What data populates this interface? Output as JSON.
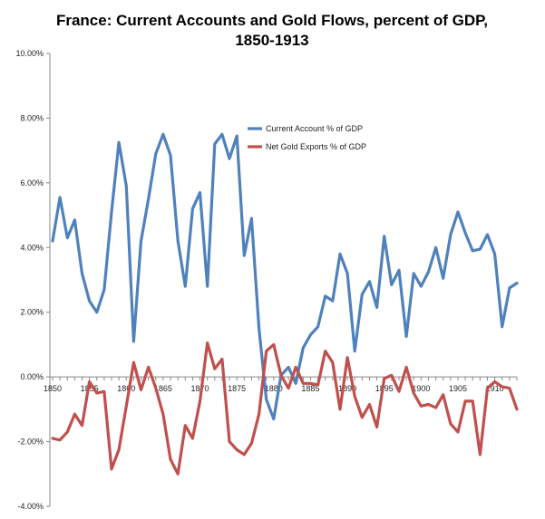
{
  "chart_data": {
    "type": "line",
    "title": "France: Current Accounts and Gold Flows, percent of GDP,",
    "subtitle": "1850-1913",
    "xlabel": "",
    "ylabel": "",
    "x": [
      1850,
      1851,
      1852,
      1853,
      1854,
      1855,
      1856,
      1857,
      1858,
      1859,
      1860,
      1861,
      1862,
      1863,
      1864,
      1865,
      1866,
      1867,
      1868,
      1869,
      1870,
      1871,
      1872,
      1873,
      1874,
      1875,
      1876,
      1877,
      1878,
      1879,
      1880,
      1881,
      1882,
      1883,
      1884,
      1885,
      1886,
      1887,
      1888,
      1889,
      1890,
      1891,
      1892,
      1893,
      1894,
      1895,
      1896,
      1897,
      1898,
      1899,
      1900,
      1901,
      1902,
      1903,
      1904,
      1905,
      1906,
      1907,
      1908,
      1909,
      1910,
      1911,
      1912,
      1913
    ],
    "xlim": [
      1850,
      1913
    ],
    "ylim": [
      -4,
      10
    ],
    "y_ticks": [
      "-4.00%",
      "-2.00%",
      "0.00%",
      "2.00%",
      "4.00%",
      "6.00%",
      "8.00%",
      "10.00%"
    ],
    "y_tick_values": [
      -4,
      -2,
      0,
      2,
      4,
      6,
      8,
      10
    ],
    "x_ticks": [
      "1850",
      "1855",
      "1860",
      "1865",
      "1870",
      "1875",
      "1880",
      "1885",
      "1890",
      "1895",
      "1900",
      "1905",
      "1910"
    ],
    "x_tick_values": [
      1850,
      1855,
      1860,
      1865,
      1870,
      1875,
      1880,
      1885,
      1890,
      1895,
      1900,
      1905,
      1910
    ],
    "grid": false,
    "legend_position": "top-center",
    "series": [
      {
        "name": "Current Account % of GDP",
        "color": "#4f81bd",
        "values": [
          4.2,
          5.55,
          4.3,
          4.85,
          3.2,
          2.35,
          2.0,
          2.7,
          5.1,
          7.25,
          5.9,
          1.1,
          4.2,
          5.5,
          6.9,
          7.5,
          6.85,
          4.2,
          2.8,
          5.2,
          5.7,
          2.8,
          7.2,
          7.5,
          6.75,
          7.45,
          3.75,
          4.9,
          1.5,
          -0.7,
          -1.3,
          0.05,
          0.3,
          -0.2,
          0.9,
          1.3,
          1.55,
          2.5,
          2.35,
          3.8,
          3.2,
          0.8,
          2.55,
          2.95,
          2.15,
          4.35,
          2.85,
          3.3,
          1.25,
          3.2,
          2.8,
          3.25,
          4.0,
          3.05,
          4.4,
          5.1,
          4.45,
          3.9,
          3.95,
          4.4,
          3.8,
          1.55,
          2.75,
          2.9
        ]
      },
      {
        "name": "Net Gold Exports % of GDP",
        "color": "#c0504d",
        "values": [
          -1.9,
          -1.95,
          -1.7,
          -1.15,
          -1.5,
          -0.15,
          -0.5,
          -0.45,
          -2.85,
          -2.25,
          -0.9,
          0.45,
          -0.4,
          0.3,
          -0.35,
          -1.15,
          -2.55,
          -3.0,
          -1.5,
          -1.9,
          -0.75,
          1.05,
          0.25,
          0.55,
          -2.0,
          -2.25,
          -2.4,
          -2.05,
          -1.15,
          0.8,
          1.0,
          0.05,
          -0.35,
          0.3,
          -0.2,
          -0.2,
          -0.25,
          0.8,
          0.45,
          -1.0,
          0.6,
          -0.6,
          -1.25,
          -0.85,
          -1.55,
          -0.05,
          0.05,
          -0.45,
          0.3,
          -0.5,
          -0.9,
          -0.85,
          -0.95,
          -0.55,
          -1.45,
          -1.7,
          -0.75,
          -0.75,
          -2.4,
          -0.35,
          -0.15,
          -0.3,
          -0.35,
          -1.0
        ]
      }
    ]
  }
}
